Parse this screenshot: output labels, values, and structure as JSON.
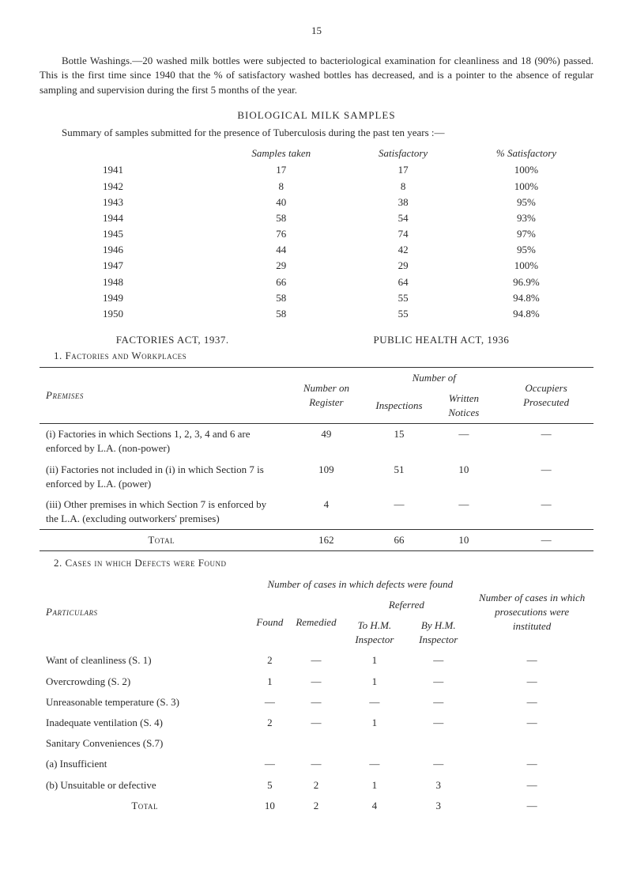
{
  "pageNumber": "15",
  "bottleWashings": "Bottle Washings.—20 washed milk bottles were subjected to bacteriological examination for cleanliness and 18 (90%) passed. This is the first time since 1940 that the % of satisfactory washed bottles has decreased, and is a pointer to the absence of regular sampling and supervision during the first 5 months of the year.",
  "biologicalHeading": "BIOLOGICAL MILK SAMPLES",
  "summaryIntro": "Summary of samples submitted for the presence of Tuberculosis during the past ten years :—",
  "samples": {
    "headers": [
      "",
      "Samples taken",
      "Satisfactory",
      "% Satisfactory"
    ],
    "rows": [
      [
        "1941",
        "17",
        "17",
        "100%"
      ],
      [
        "1942",
        "8",
        "8",
        "100%"
      ],
      [
        "1943",
        "40",
        "38",
        "95%"
      ],
      [
        "1944",
        "58",
        "54",
        "93%"
      ],
      [
        "1945",
        "76",
        "74",
        "97%"
      ],
      [
        "1946",
        "44",
        "42",
        "95%"
      ],
      [
        "1947",
        "29",
        "29",
        "100%"
      ],
      [
        "1948",
        "66",
        "64",
        "96.9%"
      ],
      [
        "1949",
        "58",
        "55",
        "94.8%"
      ],
      [
        "1950",
        "58",
        "55",
        "94.8%"
      ]
    ]
  },
  "factoriesAct": "FACTORIES ACT, 1937.",
  "publicHealthAct": "PUBLIC HEALTH ACT, 1936",
  "subhead1": "1.  Factories and Workplaces",
  "premises": {
    "headerTop": {
      "c1": "Premises",
      "c2": "Number on Register",
      "c3": "Number of",
      "c5": "Occupiers Prosecuted"
    },
    "headerSub": {
      "c3a": "Inspections",
      "c3b": "Written Notices"
    },
    "rows": [
      {
        "label": "(i) Factories in which Sections 1, 2, 3, 4 and 6 are enforced by L.A. (non-power)",
        "reg": "49",
        "insp": "15",
        "writ": "—",
        "pros": "—"
      },
      {
        "label": "(ii) Factories not included in (i) in which Section 7 is enforced by L.A. (power)",
        "reg": "109",
        "insp": "51",
        "writ": "10",
        "pros": "—"
      },
      {
        "label": "(iii) Other premises in which Section 7 is enforced by the L.A. (excluding outworkers' premises)",
        "reg": "4",
        "insp": "—",
        "writ": "—",
        "pros": "—"
      }
    ],
    "total": {
      "label": "Total",
      "reg": "162",
      "insp": "66",
      "writ": "10",
      "pros": "—"
    }
  },
  "subhead2": "2.  Cases in which Defects were Found",
  "defects": {
    "headerTop": {
      "c1": "Particulars",
      "c2": "Number of cases in which defects were found",
      "c3": "Number of cases in which prosecutions were instituted"
    },
    "headerSub": {
      "found": "Found",
      "remedied": "Remedied",
      "referred": "Referred",
      "toHM": "To H.M. Inspector",
      "byHM": "By H.M. Inspector"
    },
    "rows": [
      {
        "label": "Want of cleanliness (S. 1)",
        "found": "2",
        "remedied": "—",
        "toHM": "1",
        "byHM": "—",
        "pros": "—"
      },
      {
        "label": "Overcrowding (S. 2)",
        "found": "1",
        "remedied": "—",
        "toHM": "1",
        "byHM": "—",
        "pros": "—"
      },
      {
        "label": "Unreasonable temperature (S. 3)",
        "found": "—",
        "remedied": "—",
        "toHM": "—",
        "byHM": "—",
        "pros": "—"
      },
      {
        "label": "Inadequate ventilation (S. 4)",
        "found": "2",
        "remedied": "—",
        "toHM": "1",
        "byHM": "—",
        "pros": "—"
      },
      {
        "label": "Sanitary Conveniences (S.7)",
        "found": "",
        "remedied": "",
        "toHM": "",
        "byHM": "",
        "pros": ""
      },
      {
        "label": "(a) Insufficient",
        "found": "—",
        "remedied": "—",
        "toHM": "—",
        "byHM": "—",
        "pros": "—",
        "sub": true
      },
      {
        "label": "(b) Unsuitable or defective",
        "found": "5",
        "remedied": "2",
        "toHM": "1",
        "byHM": "3",
        "pros": "—",
        "sub": true
      }
    ],
    "total": {
      "label": "Total",
      "found": "10",
      "remedied": "2",
      "toHM": "4",
      "byHM": "3",
      "pros": "—"
    }
  }
}
